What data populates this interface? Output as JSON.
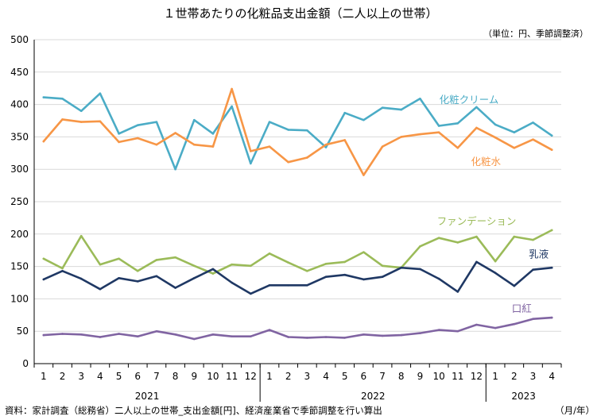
{
  "chart_data": {
    "type": "line",
    "title": "１世帯あたりの化粧品支出金額（二人以上の世帯）",
    "unit_note": "（単位：円、季節調整済）",
    "source": "資料：家計調査（総務省）二人以上の世帯_支出金額[円]、経済産業省で季節調整を行い算出",
    "x_unit": "（月/年）",
    "x": [
      "1",
      "2",
      "3",
      "4",
      "5",
      "6",
      "7",
      "8",
      "9",
      "10",
      "11",
      "12",
      "1",
      "2",
      "3",
      "4",
      "5",
      "6",
      "7",
      "8",
      "9",
      "10",
      "11",
      "12",
      "1",
      "2",
      "3",
      "4"
    ],
    "year_groups": [
      {
        "label": "2021",
        "start": 0,
        "end": 11
      },
      {
        "label": "2022",
        "start": 12,
        "end": 23
      },
      {
        "label": "2023",
        "start": 24,
        "end": 27
      }
    ],
    "ylim": [
      0,
      500
    ],
    "yticks": [
      0,
      50,
      100,
      150,
      200,
      250,
      300,
      350,
      400,
      450,
      500
    ],
    "series": [
      {
        "name": "化粧クリーム",
        "color": "#4bacc6",
        "values": [
          411,
          409,
          390,
          417,
          355,
          368,
          373,
          300,
          376,
          355,
          397,
          309,
          373,
          361,
          360,
          334,
          387,
          376,
          395,
          392,
          409,
          367,
          371,
          396,
          369,
          357,
          372,
          352
        ]
      },
      {
        "name": "化粧水",
        "color": "#f79646",
        "values": [
          343,
          377,
          373,
          374,
          342,
          348,
          338,
          356,
          338,
          335,
          424,
          328,
          335,
          311,
          318,
          338,
          345,
          291,
          335,
          350,
          354,
          357,
          333,
          364,
          349,
          333,
          346,
          330
        ]
      },
      {
        "name": "ファンデーション",
        "color": "#9bbb59",
        "values": [
          162,
          147,
          197,
          153,
          162,
          143,
          160,
          164,
          151,
          139,
          153,
          151,
          170,
          156,
          143,
          154,
          157,
          172,
          151,
          148,
          181,
          194,
          187,
          196,
          158,
          196,
          191,
          206
        ]
      },
      {
        "name": "乳液",
        "color": "#1f3864",
        "values": [
          130,
          143,
          131,
          115,
          132,
          127,
          135,
          117,
          132,
          146,
          125,
          108,
          121,
          121,
          121,
          134,
          137,
          130,
          134,
          148,
          146,
          131,
          111,
          157,
          140,
          120,
          145,
          148
        ]
      },
      {
        "name": "口紅",
        "color": "#8064a2",
        "values": [
          44,
          46,
          45,
          41,
          46,
          42,
          50,
          45,
          38,
          45,
          42,
          42,
          52,
          41,
          40,
          41,
          40,
          45,
          43,
          44,
          47,
          52,
          50,
          60,
          55,
          61,
          69,
          71
        ]
      }
    ]
  }
}
